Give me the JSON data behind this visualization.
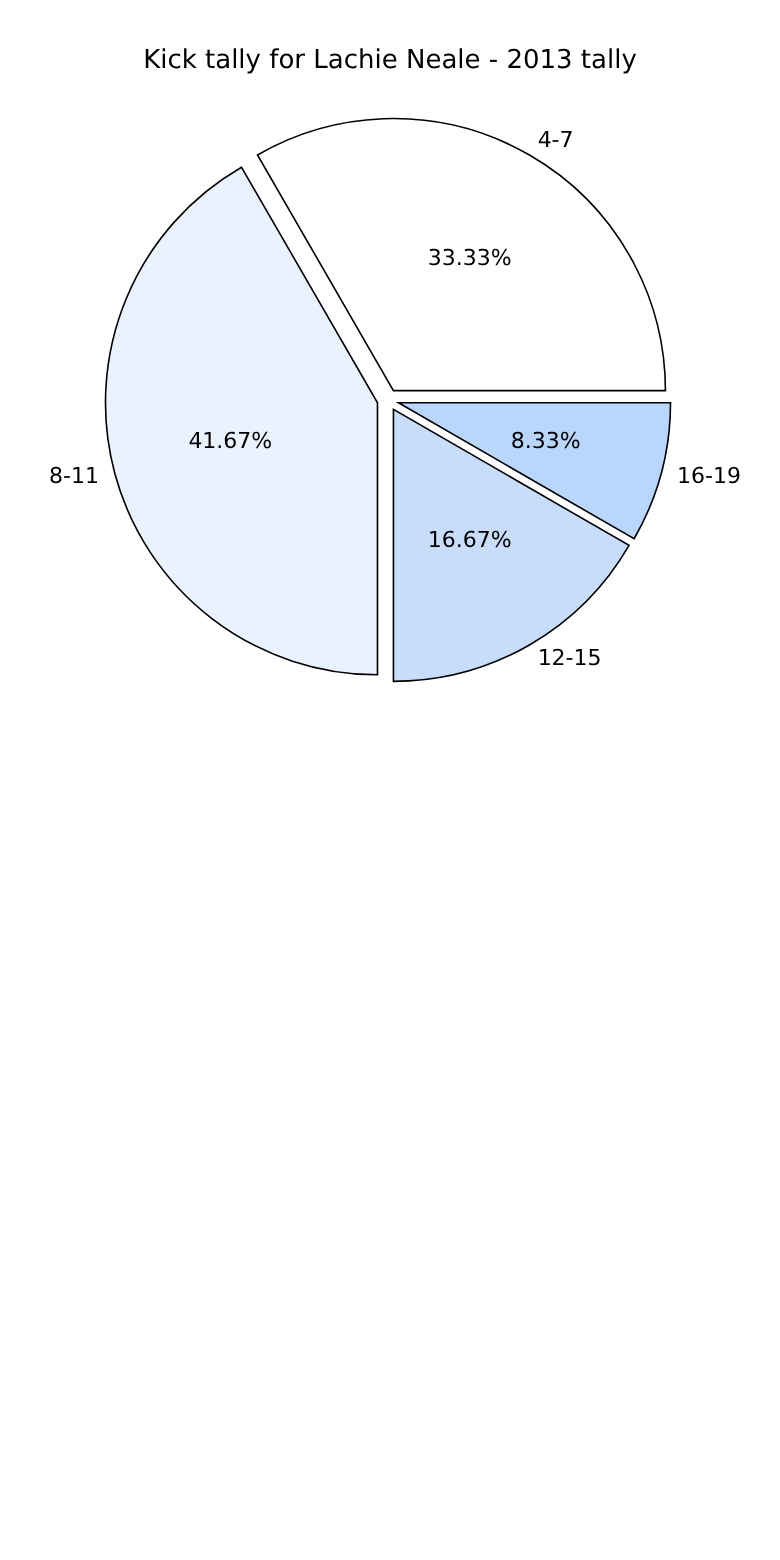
{
  "chart_data": {
    "type": "pie",
    "title": "Kick tally for Lachie Neale - 2013 tally",
    "categories": [
      "4-7",
      "8-11",
      "12-15",
      "16-19"
    ],
    "values": [
      33.33,
      41.67,
      16.67,
      8.33
    ],
    "colors": [
      "#ffffff",
      "#eaf1ff",
      "#c8dcfb",
      "#b9d7fd"
    ],
    "value_labels": [
      "33.33%",
      "41.67%",
      "16.67%",
      "8.33%"
    ]
  }
}
